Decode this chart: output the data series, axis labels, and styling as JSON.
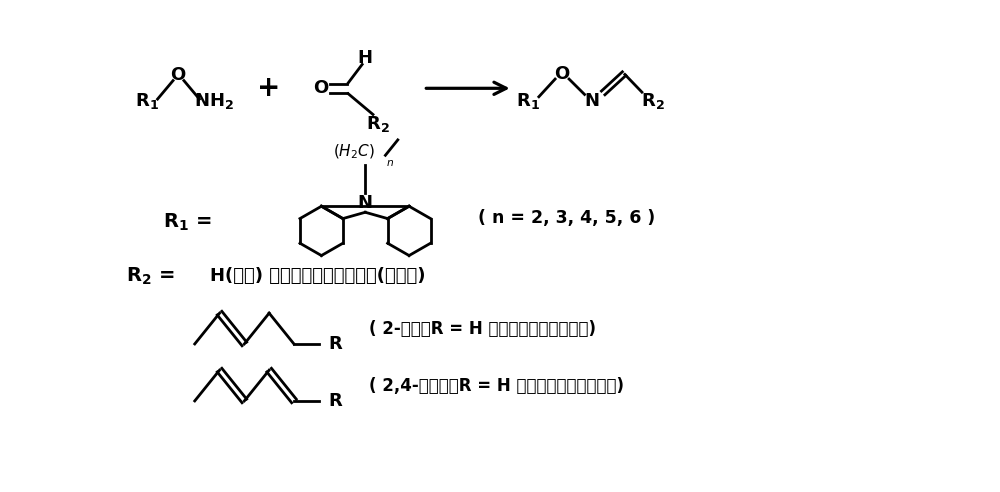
{
  "bg_color": "#ffffff",
  "fig_width": 10.0,
  "fig_height": 4.92,
  "dpi": 100,
  "r1_note": "( n = 2, 3, 4, 5, 6 )",
  "r2_text": "H(甲醒) 或不同长度的饱和碳链(饱和醒)",
  "enal_text": "( 2-烯醒，R = H 或不同长度的饱和碳链)",
  "dienal_text": "( 2,4-二烯醒，R = H 或不同长度的饱和碳链)"
}
